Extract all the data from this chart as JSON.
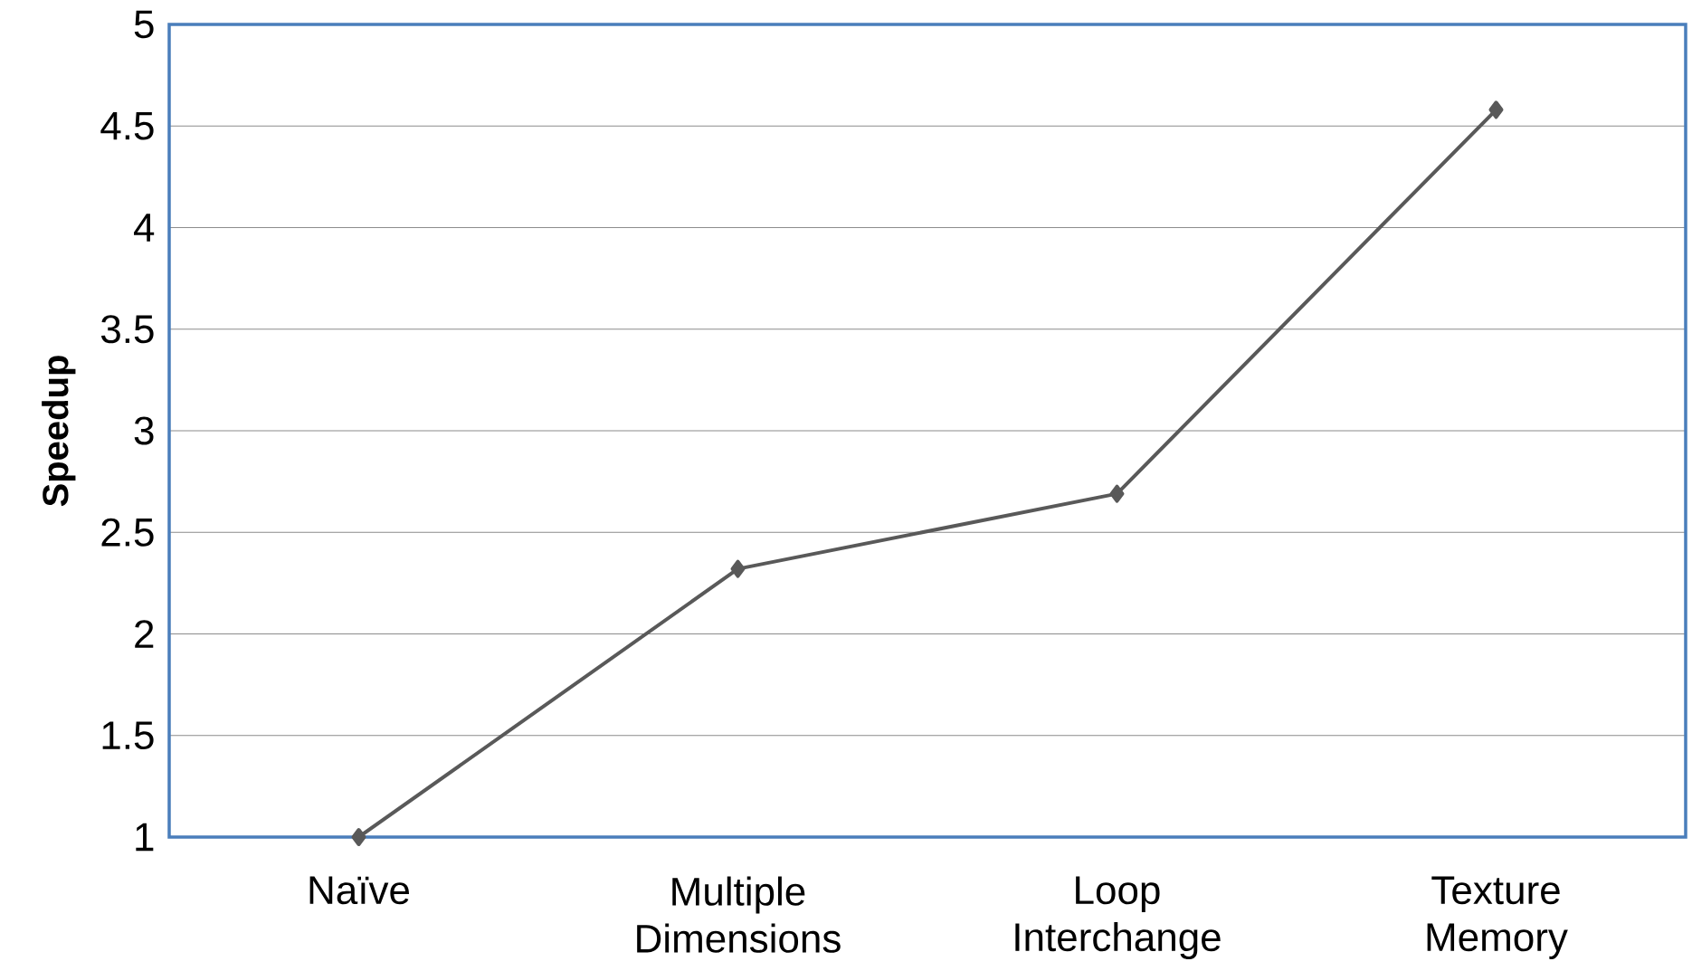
{
  "chart_data": {
    "type": "line",
    "ylabel": "Speedup",
    "categories": [
      "Naïve",
      "Multiple Dimensions",
      "Loop Interchange",
      "Texture Memory"
    ],
    "series": [
      {
        "color": "#595959",
        "values": [
          1,
          2.32,
          2.69,
          4.58
        ]
      }
    ],
    "ylim": [
      1,
      5
    ],
    "yticks": [
      1,
      1.5,
      2,
      2.5,
      3,
      3.5,
      4,
      4.5,
      5
    ],
    "grid": "y",
    "marker": "diamond"
  }
}
